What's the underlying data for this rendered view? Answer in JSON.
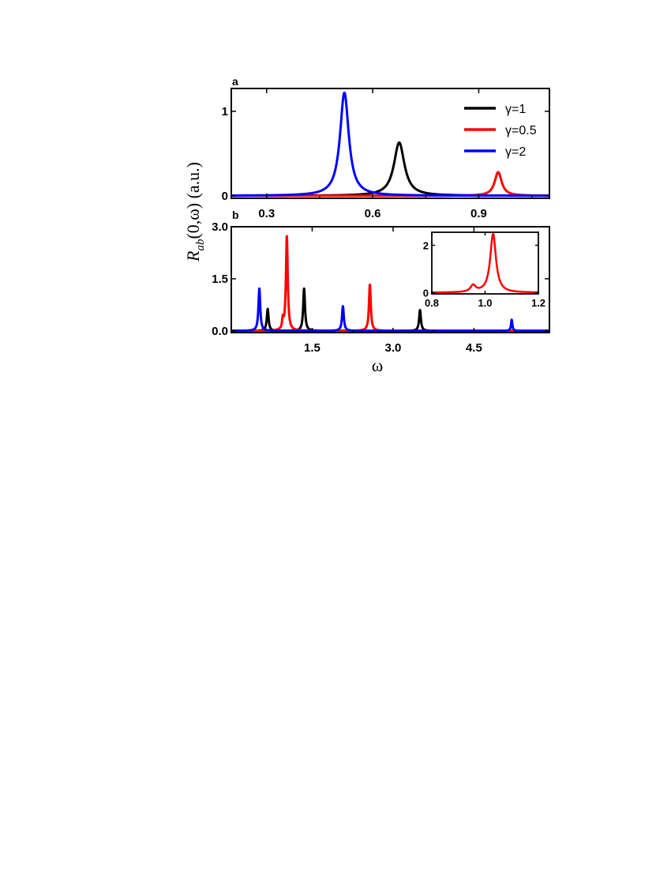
{
  "chart_data": [
    {
      "panel": "a",
      "type": "line",
      "xlabel": "",
      "ylabel": "",
      "xlim": [
        0.2,
        1.1
      ],
      "ylim": [
        -0.03,
        1.27
      ],
      "xticks": [
        "0.3",
        "0.6",
        "0.9"
      ],
      "xtick_values": [
        0.3,
        0.6,
        0.9
      ],
      "yticks": [
        "0",
        "1"
      ],
      "ytick_values": [
        0,
        1
      ],
      "legend": "top-right",
      "series": [
        {
          "name": "γ=1",
          "color": "#000000",
          "peaks": [
            {
              "x": 0.675,
              "height": 0.63,
              "width": 0.018
            }
          ]
        },
        {
          "name": "γ=0.5",
          "color": "#ff0000",
          "peaks": [
            {
              "x": 0.955,
              "height": 0.28,
              "width": 0.012
            }
          ]
        },
        {
          "name": "γ=2",
          "color": "#0000ff",
          "peaks": [
            {
              "x": 0.52,
              "height": 1.22,
              "width": 0.015
            }
          ]
        }
      ]
    },
    {
      "panel": "b",
      "type": "line",
      "xlabel": "ω",
      "ylabel": "R_ab(0,ω) (a.u.)",
      "ylabel_parts": {
        "symbol": "R",
        "sub": "ab",
        "rest": "(0,ω) (a.u.)"
      },
      "xlim": [
        0,
        5.9
      ],
      "ylim": [
        -0.05,
        3.0
      ],
      "xticks": [
        "1.5",
        "3.0",
        "4.5"
      ],
      "xtick_values": [
        1.5,
        3.0,
        4.5
      ],
      "yticks": [
        "0.0",
        "1.5",
        "3.0"
      ],
      "ytick_values": [
        0.0,
        1.5,
        3.0
      ],
      "series": [
        {
          "name": "γ=1",
          "color": "#000000",
          "peaks": [
            {
              "x": 0.675,
              "height": 0.63,
              "width": 0.02
            },
            {
              "x": 1.35,
              "height": 1.22,
              "width": 0.02
            },
            {
              "x": 3.5,
              "height": 0.6,
              "width": 0.02
            }
          ]
        },
        {
          "name": "γ=0.5",
          "color": "#ff0000",
          "peaks": [
            {
              "x": 0.955,
              "height": 0.28,
              "width": 0.015
            },
            {
              "x": 1.03,
              "height": 2.72,
              "width": 0.02
            },
            {
              "x": 2.57,
              "height": 1.33,
              "width": 0.02
            }
          ]
        },
        {
          "name": "γ=2",
          "color": "#0000ff",
          "peaks": [
            {
              "x": 0.52,
              "height": 1.22,
              "width": 0.02
            },
            {
              "x": 2.07,
              "height": 0.71,
              "width": 0.02
            },
            {
              "x": 5.2,
              "height": 0.32,
              "width": 0.015
            }
          ]
        }
      ]
    },
    {
      "panel": "b-inset",
      "type": "line",
      "xlim": [
        0.8,
        1.2
      ],
      "ylim": [
        -0.05,
        2.55
      ],
      "xticks": [
        "0.8",
        "1.0",
        "1.2"
      ],
      "xtick_values": [
        0.8,
        1.0,
        1.2
      ],
      "yticks": [
        "0",
        "2"
      ],
      "ytick_values": [
        0,
        2
      ],
      "series": [
        {
          "name": "γ=0.5",
          "color": "#ff0000",
          "peaks": [
            {
              "x": 0.955,
              "height": 0.28,
              "width": 0.012
            },
            {
              "x": 1.03,
              "height": 2.48,
              "width": 0.013
            }
          ]
        }
      ]
    }
  ]
}
